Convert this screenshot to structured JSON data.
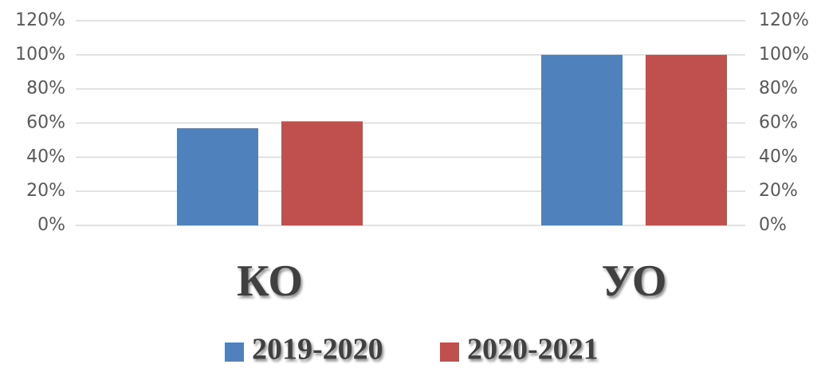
{
  "chart_data": {
    "type": "bar",
    "categories": [
      "КО",
      "УО"
    ],
    "series": [
      {
        "name": "2019-2020",
        "color": "#4f81bd",
        "values": [
          57,
          100
        ]
      },
      {
        "name": "2020-2021",
        "color": "#c0504d",
        "values": [
          61,
          100
        ]
      }
    ],
    "ylim": [
      0,
      120
    ],
    "yticks": [
      {
        "value": 0,
        "label": "0%"
      },
      {
        "value": 20,
        "label": "20%"
      },
      {
        "value": 40,
        "label": "40%"
      },
      {
        "value": 60,
        "label": "60%"
      },
      {
        "value": 80,
        "label": "80%"
      },
      {
        "value": 100,
        "label": "100%"
      },
      {
        "value": 120,
        "label": "120%"
      }
    ],
    "y2lim": [
      0,
      120
    ],
    "y2ticks": [
      {
        "value": 0,
        "label": "0%"
      },
      {
        "value": 20,
        "label": "20%"
      },
      {
        "value": 40,
        "label": "40%"
      },
      {
        "value": 60,
        "label": "60%"
      },
      {
        "value": 80,
        "label": "80%"
      },
      {
        "value": 100,
        "label": "100%"
      },
      {
        "value": 120,
        "label": "120%"
      }
    ],
    "grid": true,
    "legend": "bottom"
  }
}
